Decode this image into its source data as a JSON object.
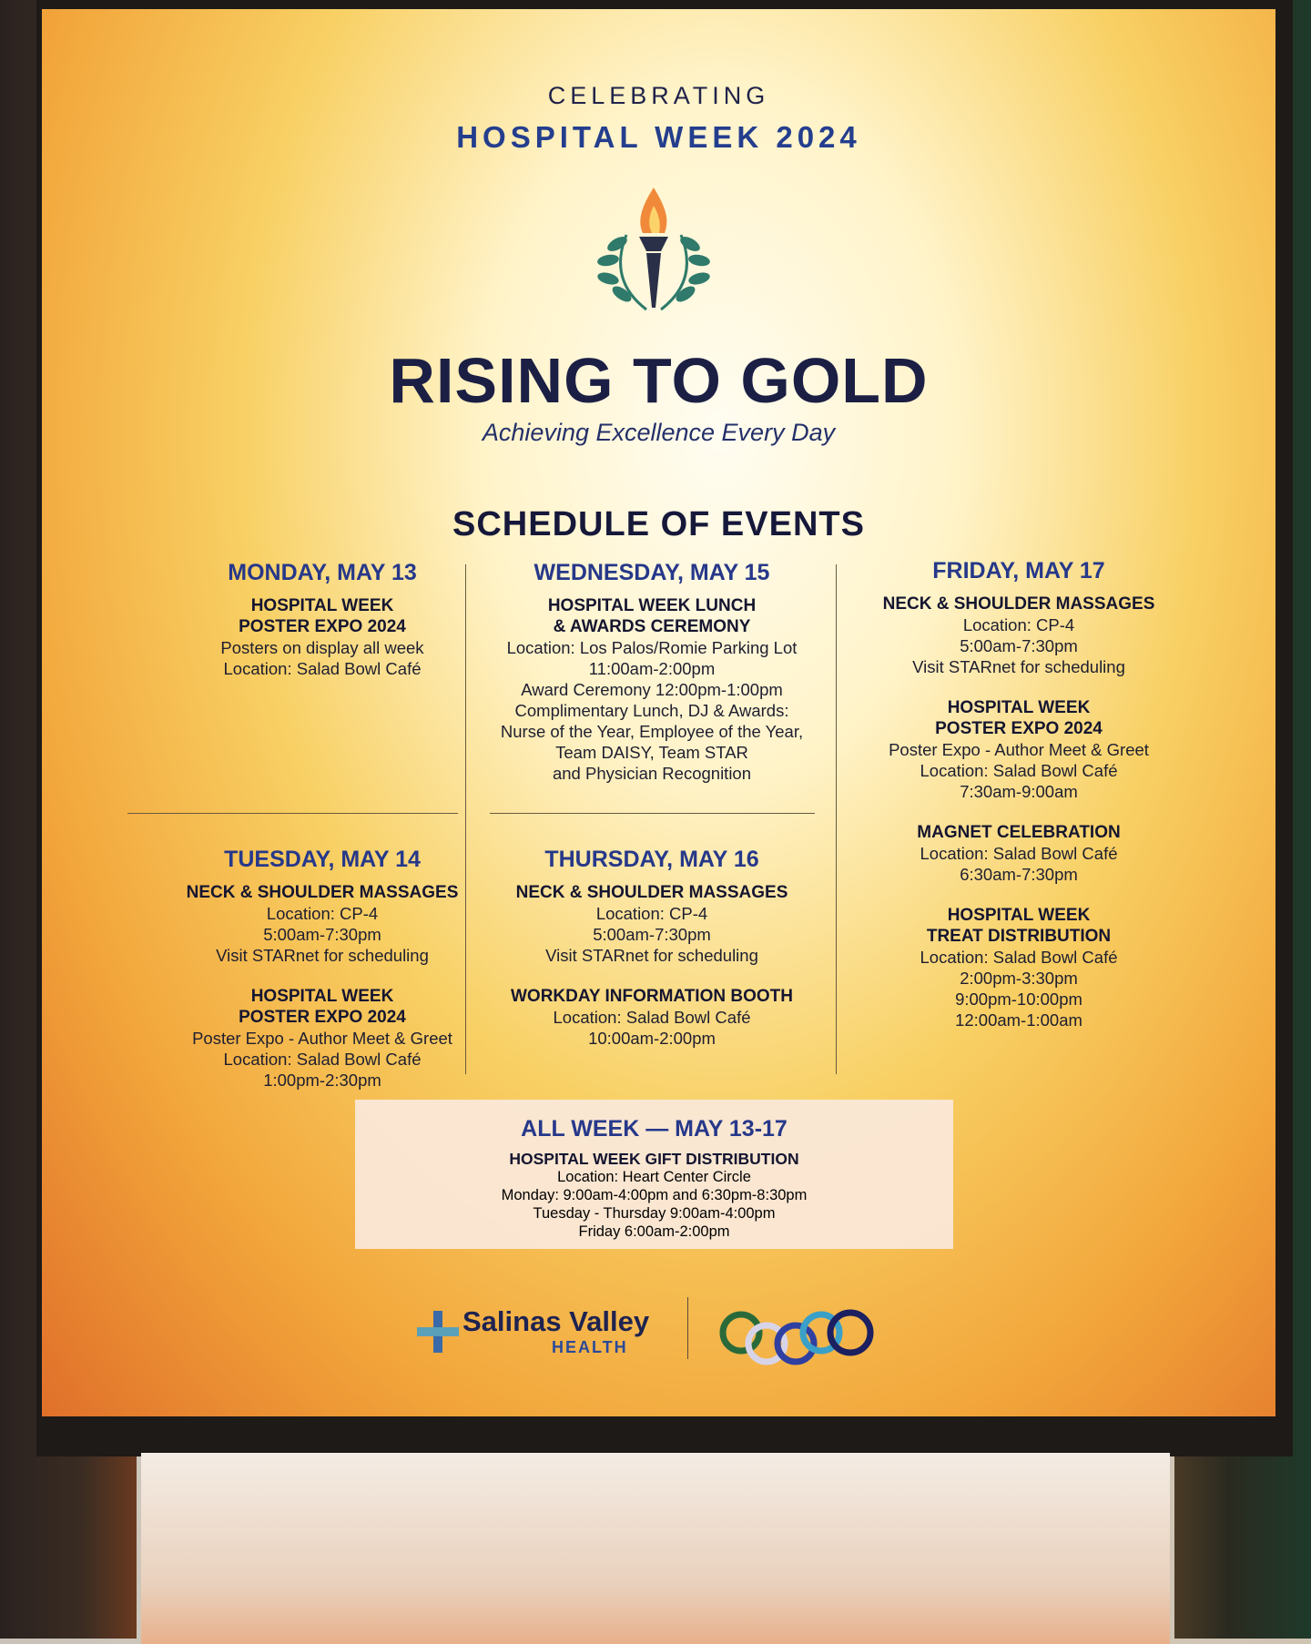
{
  "header": {
    "kicker": "CELEBRATING",
    "event": "HOSPITAL WEEK 2024"
  },
  "emblem": "torch-laurel-icon",
  "title": "RISING TO GOLD",
  "subtitle": "Achieving Excellence Every Day",
  "schedule_heading": "SCHEDULE OF EVENTS",
  "days": [
    {
      "day": "MONDAY, MAY 13",
      "events": [
        {
          "title": [
            "HOSPITAL WEEK",
            "POSTER EXPO 2024"
          ],
          "lines": [
            "Posters on display all week",
            "Location: Salad Bowl Café"
          ]
        }
      ]
    },
    {
      "day": "WEDNESDAY, MAY 15",
      "events": [
        {
          "title": [
            "HOSPITAL WEEK LUNCH",
            "& AWARDS CEREMONY"
          ],
          "lines": [
            "Location: Los Palos/Romie Parking Lot",
            "11:00am-2:00pm",
            "Award Ceremony 12:00pm-1:00pm",
            "Complimentary Lunch, DJ & Awards:",
            "Nurse of the Year, Employee of the Year,",
            "Team DAISY, Team STAR",
            "and Physician Recognition"
          ]
        }
      ]
    },
    {
      "day": "FRIDAY, MAY 17",
      "events": [
        {
          "title": [
            "NECK & SHOULDER MASSAGES"
          ],
          "lines": [
            "Location: CP-4",
            "5:00am-7:30pm",
            "Visit STARnet for scheduling"
          ]
        },
        {
          "title": [
            "HOSPITAL WEEK",
            "POSTER EXPO 2024"
          ],
          "lines": [
            "Poster Expo - Author Meet & Greet",
            "Location: Salad Bowl Café",
            "7:30am-9:00am"
          ]
        },
        {
          "title": [
            "MAGNET CELEBRATION"
          ],
          "lines": [
            "Location: Salad Bowl Café",
            "6:30am-7:30pm"
          ]
        },
        {
          "title": [
            "HOSPITAL WEEK",
            "TREAT DISTRIBUTION"
          ],
          "lines": [
            "Location: Salad Bowl Café",
            "2:00pm-3:30pm",
            "9:00pm-10:00pm",
            "12:00am-1:00am"
          ]
        }
      ]
    },
    {
      "day": "TUESDAY, MAY 14",
      "events": [
        {
          "title": [
            "NECK & SHOULDER MASSAGES"
          ],
          "lines": [
            "Location: CP-4",
            "5:00am-7:30pm",
            "Visit STARnet for scheduling"
          ]
        },
        {
          "title": [
            "HOSPITAL WEEK",
            "POSTER EXPO 2024"
          ],
          "lines": [
            "Poster Expo - Author Meet & Greet",
            "Location: Salad Bowl Café",
            "1:00pm-2:30pm"
          ]
        }
      ]
    },
    {
      "day": "THURSDAY, MAY 16",
      "events": [
        {
          "title": [
            "NECK & SHOULDER MASSAGES"
          ],
          "lines": [
            "Location: CP-4",
            "5:00am-7:30pm",
            "Visit STARnet for scheduling"
          ]
        },
        {
          "title": [
            "WORKDAY INFORMATION BOOTH"
          ],
          "lines": [
            "Location: Salad Bowl Café",
            "10:00am-2:00pm"
          ]
        }
      ]
    }
  ],
  "all_week": {
    "heading": "ALL WEEK — MAY 13-17",
    "title": "HOSPITAL WEEK GIFT DISTRIBUTION",
    "lines": [
      "Location: Heart Center Circle",
      "Monday: 9:00am-4:00pm and 6:30pm-8:30pm",
      "Tuesday - Thursday 9:00am-4:00pm",
      "Friday 6:00am-2:00pm"
    ]
  },
  "footer": {
    "logo_name": "Salinas Valley",
    "logo_sub": "HEALTH",
    "logo_icon": "salinas-valley-cross-icon",
    "rings_icon": "olympic-rings-icon"
  },
  "colors": {
    "navy": "#1c1f44",
    "blue": "#26388a",
    "gold": "#f8d064",
    "orange": "#e0702a"
  }
}
